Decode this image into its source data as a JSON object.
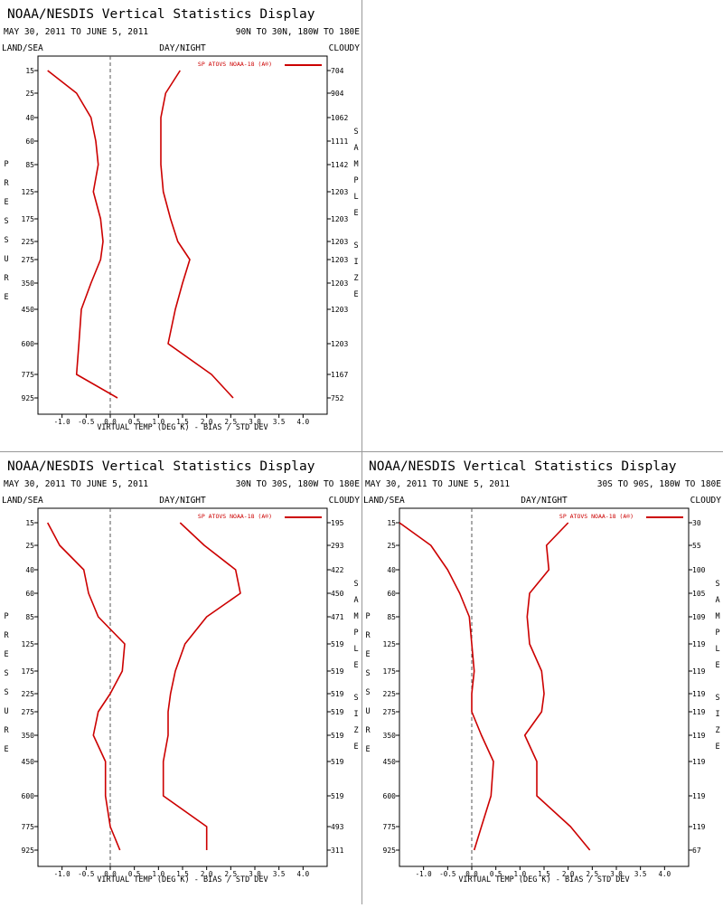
{
  "panels": [
    {
      "title": "NOAA/NESDIS Vertical Statistics Display",
      "date_range": "MAY 30, 2011 TO JUNE 5, 2011",
      "region": "90N TO 30N, 180W TO 180E",
      "left_label": "LAND/SEA",
      "center_label": "DAY/NIGHT",
      "right_label": "CLOUDY",
      "y_axis_label": "PRESSURE",
      "right_axis_label": "SAMPLE SIZE",
      "chart_data": {
        "type": "line",
        "xlabel": "VIRTUAL TEMP (DEG K) - BIAS / STD DEV",
        "xlim": [
          -1.5,
          4.5
        ],
        "x_ticks": [
          "-1.0",
          "-0.5",
          "0.0",
          "0.5",
          "1.0",
          "1.5",
          "2.0",
          "2.5",
          "3.0",
          "3.5",
          "4.0"
        ],
        "pressure_levels": [
          "15",
          "25",
          "40",
          "60",
          "85",
          "125",
          "175",
          "225",
          "275",
          "350",
          "450",
          "600",
          "775",
          "925"
        ],
        "sample_size": [
          "704",
          "904",
          "1062",
          "1111",
          "1142",
          "1203",
          "1203",
          "1203",
          "1203",
          "1203",
          "1203",
          "1203",
          "1167",
          "752"
        ],
        "legend": "SP ATOVS NOAA-18 (A®)",
        "series": [
          {
            "values": [
              -1.3,
              -0.7,
              -0.4,
              -0.3,
              -0.25,
              -0.35,
              -0.2,
              -0.15,
              -0.2,
              -0.4,
              -0.6,
              -0.65,
              -0.7,
              0.15
            ]
          },
          {
            "values": [
              1.45,
              1.15,
              1.05,
              1.05,
              1.05,
              1.1,
              1.25,
              1.4,
              1.65,
              1.5,
              1.35,
              1.2,
              2.1,
              2.55
            ]
          }
        ],
        "color": "#cc0000"
      }
    },
    {
      "title": "NOAA/NESDIS Vertical Statistics Display",
      "date_range": "MAY 30, 2011 TO JUNE 5, 2011",
      "region": "30N TO 30S, 180W TO 180E",
      "left_label": "LAND/SEA",
      "center_label": "DAY/NIGHT",
      "right_label": "CLOUDY",
      "y_axis_label": "PRESSURE",
      "right_axis_label": "SAMPLE SIZE",
      "chart_data": {
        "type": "line",
        "xlabel": "VIRTUAL TEMP (DEG K) - BIAS / STD DEV",
        "xlim": [
          -1.5,
          4.5
        ],
        "x_ticks": [
          "-1.0",
          "-0.5",
          "0.0",
          "0.5",
          "1.0",
          "1.5",
          "2.0",
          "2.5",
          "3.0",
          "3.5",
          "4.0"
        ],
        "pressure_levels": [
          "15",
          "25",
          "40",
          "60",
          "85",
          "125",
          "175",
          "225",
          "275",
          "350",
          "450",
          "600",
          "775",
          "925"
        ],
        "sample_size": [
          "195",
          "293",
          "422",
          "450",
          "471",
          "519",
          "519",
          "519",
          "519",
          "519",
          "519",
          "519",
          "493",
          "311"
        ],
        "legend": "SP ATOVS NOAA-18 (A®)",
        "series": [
          {
            "values": [
              -1.3,
              -1.05,
              -0.55,
              -0.45,
              -0.25,
              0.3,
              0.25,
              0.0,
              -0.25,
              -0.35,
              -0.1,
              -0.1,
              0.0,
              0.2
            ]
          },
          {
            "values": [
              1.45,
              1.95,
              2.6,
              2.7,
              2.0,
              1.55,
              1.35,
              1.25,
              1.2,
              1.2,
              1.1,
              1.1,
              2.0,
              2.0
            ]
          }
        ],
        "color": "#cc0000"
      }
    },
    {
      "title": "NOAA/NESDIS Vertical Statistics Display",
      "date_range": "MAY 30, 2011 TO JUNE 5, 2011",
      "region": "30S TO 90S, 180W TO 180E",
      "left_label": "LAND/SEA",
      "center_label": "DAY/NIGHT",
      "right_label": "CLOUDY",
      "y_axis_label": "PRESSURE",
      "right_axis_label": "SAMPLE SIZE",
      "chart_data": {
        "type": "line",
        "xlabel": "VIRTUAL TEMP (DEG K) - BIAS / STD DEV",
        "xlim": [
          -1.5,
          4.5
        ],
        "x_ticks": [
          "-1.0",
          "-0.5",
          "0.0",
          "0.5",
          "1.0",
          "1.5",
          "2.0",
          "2.5",
          "3.0",
          "3.5",
          "4.0"
        ],
        "pressure_levels": [
          "15",
          "25",
          "40",
          "60",
          "85",
          "125",
          "175",
          "225",
          "275",
          "350",
          "450",
          "600",
          "775",
          "925"
        ],
        "sample_size": [
          "30",
          "55",
          "100",
          "105",
          "109",
          "119",
          "119",
          "119",
          "119",
          "119",
          "119",
          "119",
          "119",
          "67"
        ],
        "legend": "SP ATOVS NOAA-18 (A®)",
        "series": [
          {
            "values": [
              -1.5,
              -0.85,
              -0.5,
              -0.25,
              -0.05,
              0.0,
              0.05,
              0.0,
              0.0,
              0.2,
              0.45,
              0.4,
              0.2,
              0.05
            ]
          },
          {
            "values": [
              2.0,
              1.55,
              1.6,
              1.2,
              1.15,
              1.2,
              1.45,
              1.5,
              1.45,
              1.1,
              1.35,
              1.35,
              2.05,
              2.45
            ]
          }
        ],
        "color": "#cc0000"
      }
    }
  ]
}
